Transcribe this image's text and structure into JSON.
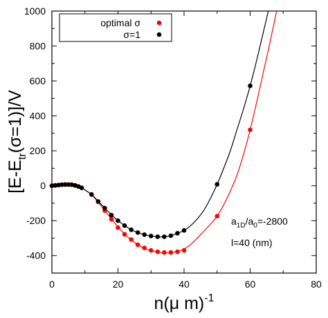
{
  "chart_data": {
    "type": "scatter",
    "title": "",
    "xlabel": "n(μ m)",
    "xlabel_sup": "-1",
    "ylabel_parts": [
      "[E-E",
      "tr",
      "(σ=1)]/V"
    ],
    "xlim": [
      0,
      80
    ],
    "ylim": [
      -500,
      1000
    ],
    "xticks": [
      0,
      20,
      40,
      60,
      80
    ],
    "yticks": [
      -400,
      -200,
      0,
      200,
      400,
      600,
      800,
      1000
    ],
    "legend_position": "top-left",
    "grid": false,
    "series": [
      {
        "name": "optimal σ",
        "color": "#ff0000",
        "points": [
          {
            "x": 0,
            "y": 0
          },
          {
            "x": 1,
            "y": 2
          },
          {
            "x": 2,
            "y": 4
          },
          {
            "x": 3,
            "y": 6
          },
          {
            "x": 4,
            "y": 7
          },
          {
            "x": 5,
            "y": 7
          },
          {
            "x": 6,
            "y": 6
          },
          {
            "x": 7,
            "y": 2
          },
          {
            "x": 8,
            "y": -4
          },
          {
            "x": 9,
            "y": -12
          },
          {
            "x": 12,
            "y": -50
          },
          {
            "x": 14,
            "y": -92
          },
          {
            "x": 16,
            "y": -142
          },
          {
            "x": 18,
            "y": -192
          },
          {
            "x": 20,
            "y": -240
          },
          {
            "x": 22,
            "y": -278
          },
          {
            "x": 24,
            "y": -308
          },
          {
            "x": 26,
            "y": -338
          },
          {
            "x": 28,
            "y": -356
          },
          {
            "x": 30,
            "y": -370
          },
          {
            "x": 32,
            "y": -378
          },
          {
            "x": 34,
            "y": -382
          },
          {
            "x": 36,
            "y": -382
          },
          {
            "x": 38,
            "y": -378
          },
          {
            "x": 40,
            "y": -370
          },
          {
            "x": 50,
            "y": -174
          },
          {
            "x": 60,
            "y": 320
          }
        ],
        "curve": [
          [
            0,
            0
          ],
          [
            2,
            4
          ],
          [
            4,
            7
          ],
          [
            6,
            6
          ],
          [
            8,
            -4
          ],
          [
            10,
            -24
          ],
          [
            12,
            -52
          ],
          [
            14,
            -94
          ],
          [
            16,
            -142
          ],
          [
            18,
            -190
          ],
          [
            20,
            -236
          ],
          [
            22,
            -276
          ],
          [
            24,
            -310
          ],
          [
            26,
            -338
          ],
          [
            28,
            -358
          ],
          [
            30,
            -372
          ],
          [
            32,
            -380
          ],
          [
            34,
            -384
          ],
          [
            36,
            -382
          ],
          [
            38,
            -376
          ],
          [
            40,
            -362
          ],
          [
            42,
            -336
          ],
          [
            44,
            -300
          ],
          [
            46,
            -260
          ],
          [
            48,
            -220
          ],
          [
            50,
            -174
          ],
          [
            52,
            -110
          ],
          [
            54,
            -30
          ],
          [
            56,
            60
          ],
          [
            58,
            180
          ],
          [
            60,
            320
          ],
          [
            62,
            480
          ],
          [
            64,
            650
          ],
          [
            66,
            820
          ],
          [
            68,
            1000
          ]
        ]
      },
      {
        "name": "σ=1",
        "color": "#000000",
        "points": [
          {
            "x": 0,
            "y": 0
          },
          {
            "x": 1,
            "y": 2
          },
          {
            "x": 2,
            "y": 4
          },
          {
            "x": 3,
            "y": 6
          },
          {
            "x": 4,
            "y": 7
          },
          {
            "x": 5,
            "y": 7
          },
          {
            "x": 6,
            "y": 6
          },
          {
            "x": 7,
            "y": 2
          },
          {
            "x": 8,
            "y": -4
          },
          {
            "x": 9,
            "y": -12
          },
          {
            "x": 12,
            "y": -50
          },
          {
            "x": 14,
            "y": -90
          },
          {
            "x": 16,
            "y": -128
          },
          {
            "x": 18,
            "y": -168
          },
          {
            "x": 20,
            "y": -200
          },
          {
            "x": 22,
            "y": -228
          },
          {
            "x": 24,
            "y": -252
          },
          {
            "x": 26,
            "y": -268
          },
          {
            "x": 28,
            "y": -280
          },
          {
            "x": 30,
            "y": -288
          },
          {
            "x": 32,
            "y": -292
          },
          {
            "x": 34,
            "y": -292
          },
          {
            "x": 36,
            "y": -286
          },
          {
            "x": 38,
            "y": -272
          },
          {
            "x": 40,
            "y": -256
          },
          {
            "x": 50,
            "y": 8
          },
          {
            "x": 60,
            "y": 572
          }
        ],
        "curve": [
          [
            0,
            0
          ],
          [
            2,
            4
          ],
          [
            4,
            7
          ],
          [
            6,
            6
          ],
          [
            8,
            -4
          ],
          [
            10,
            -24
          ],
          [
            12,
            -50
          ],
          [
            14,
            -88
          ],
          [
            16,
            -128
          ],
          [
            18,
            -166
          ],
          [
            20,
            -200
          ],
          [
            22,
            -228
          ],
          [
            24,
            -252
          ],
          [
            26,
            -268
          ],
          [
            28,
            -280
          ],
          [
            30,
            -288
          ],
          [
            32,
            -292
          ],
          [
            34,
            -292
          ],
          [
            36,
            -286
          ],
          [
            38,
            -272
          ],
          [
            40,
            -256
          ],
          [
            42,
            -228
          ],
          [
            44,
            -190
          ],
          [
            46,
            -140
          ],
          [
            48,
            -72
          ],
          [
            50,
            8
          ],
          [
            52,
            100
          ],
          [
            54,
            200
          ],
          [
            56,
            320
          ],
          [
            58,
            440
          ],
          [
            60,
            572
          ],
          [
            62,
            720
          ],
          [
            64,
            880
          ],
          [
            65.5,
            1000
          ]
        ]
      }
    ],
    "annotations": {
      "ratio_base": "a",
      "ratio_sub1": "1D",
      "ratio_mid": "/a",
      "ratio_sub2": "0",
      "ratio_value": "=-2800",
      "length": "l=40 (nm)"
    }
  }
}
